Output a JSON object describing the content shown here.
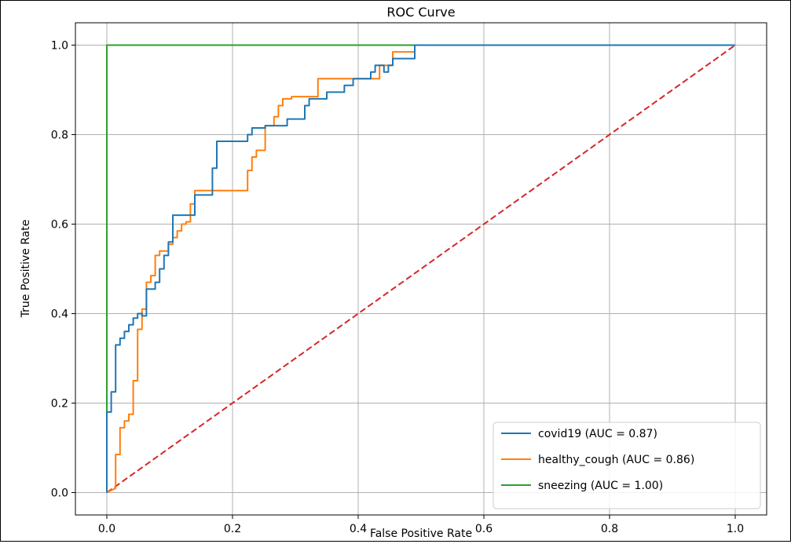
{
  "chart_data": {
    "type": "line",
    "title": "ROC Curve",
    "xlabel": "False Positive Rate",
    "ylabel": "True Positive Rate",
    "xlim": [
      -0.05,
      1.05
    ],
    "ylim": [
      -0.05,
      1.05
    ],
    "x_ticks": [
      0.0,
      0.2,
      0.4,
      0.6,
      0.8,
      1.0
    ],
    "x_tick_labels": [
      "0.0",
      "0.2",
      "0.4",
      "0.6",
      "0.8",
      "1.0"
    ],
    "y_ticks": [
      0.0,
      0.2,
      0.4,
      0.6,
      0.8,
      1.0
    ],
    "y_tick_labels": [
      "0.0",
      "0.2",
      "0.4",
      "0.6",
      "0.8",
      "1.0"
    ],
    "grid": true,
    "legend_position": "lower right",
    "series": [
      {
        "name": "covid19 (AUC = 0.87)",
        "color": "#1f77b4",
        "style": "solid",
        "x": [
          0.0,
          0.0,
          0.007,
          0.007,
          0.014,
          0.014,
          0.021,
          0.021,
          0.028,
          0.028,
          0.035,
          0.035,
          0.042,
          0.042,
          0.049,
          0.049,
          0.056,
          0.056,
          0.063,
          0.063,
          0.077,
          0.077,
          0.084,
          0.084,
          0.091,
          0.091,
          0.098,
          0.098,
          0.105,
          0.105,
          0.14,
          0.14,
          0.168,
          0.168,
          0.175,
          0.175,
          0.224,
          0.224,
          0.231,
          0.231,
          0.252,
          0.252,
          0.287,
          0.287,
          0.315,
          0.315,
          0.322,
          0.322,
          0.35,
          0.35,
          0.378,
          0.378,
          0.392,
          0.392,
          0.42,
          0.42,
          0.427,
          0.427,
          0.441,
          0.441,
          0.448,
          0.448,
          0.455,
          0.455,
          0.469,
          0.469,
          0.49,
          0.49,
          1.0
        ],
        "y": [
          0.0,
          0.18,
          0.18,
          0.225,
          0.225,
          0.33,
          0.33,
          0.345,
          0.345,
          0.36,
          0.36,
          0.375,
          0.375,
          0.39,
          0.39,
          0.4,
          0.4,
          0.395,
          0.395,
          0.455,
          0.455,
          0.47,
          0.47,
          0.5,
          0.5,
          0.53,
          0.53,
          0.56,
          0.56,
          0.62,
          0.62,
          0.665,
          0.665,
          0.725,
          0.725,
          0.785,
          0.785,
          0.8,
          0.8,
          0.815,
          0.815,
          0.82,
          0.82,
          0.835,
          0.835,
          0.865,
          0.865,
          0.88,
          0.88,
          0.895,
          0.895,
          0.91,
          0.91,
          0.925,
          0.925,
          0.94,
          0.94,
          0.955,
          0.955,
          0.94,
          0.94,
          0.955,
          0.955,
          0.97,
          0.97,
          0.97,
          0.97,
          1.0,
          1.0
        ]
      },
      {
        "name": "healthy_cough (AUC = 0.86)",
        "color": "#ff7f0e",
        "style": "solid",
        "x": [
          0.0,
          0.014,
          0.014,
          0.021,
          0.021,
          0.028,
          0.028,
          0.035,
          0.035,
          0.042,
          0.042,
          0.049,
          0.049,
          0.056,
          0.056,
          0.063,
          0.063,
          0.07,
          0.07,
          0.077,
          0.077,
          0.084,
          0.084,
          0.098,
          0.098,
          0.105,
          0.105,
          0.112,
          0.112,
          0.119,
          0.119,
          0.126,
          0.126,
          0.133,
          0.133,
          0.14,
          0.14,
          0.224,
          0.224,
          0.231,
          0.231,
          0.238,
          0.238,
          0.252,
          0.252,
          0.266,
          0.266,
          0.273,
          0.273,
          0.28,
          0.28,
          0.294,
          0.294,
          0.336,
          0.336,
          0.434,
          0.434,
          0.455,
          0.455,
          0.49,
          0.49,
          1.0
        ],
        "y": [
          0.0,
          0.01,
          0.085,
          0.085,
          0.145,
          0.145,
          0.16,
          0.16,
          0.175,
          0.175,
          0.25,
          0.25,
          0.365,
          0.365,
          0.41,
          0.41,
          0.47,
          0.47,
          0.485,
          0.485,
          0.53,
          0.53,
          0.54,
          0.54,
          0.555,
          0.555,
          0.57,
          0.57,
          0.585,
          0.585,
          0.6,
          0.6,
          0.605,
          0.605,
          0.645,
          0.645,
          0.675,
          0.675,
          0.72,
          0.72,
          0.75,
          0.75,
          0.765,
          0.765,
          0.82,
          0.82,
          0.84,
          0.84,
          0.865,
          0.865,
          0.88,
          0.88,
          0.885,
          0.885,
          0.925,
          0.925,
          0.955,
          0.955,
          0.985,
          0.985,
          1.0,
          1.0
        ]
      },
      {
        "name": "sneezing (AUC = 1.00)",
        "color": "#2ca02c",
        "style": "solid",
        "x": [
          0.0,
          0.0,
          1.0
        ],
        "y": [
          0.0,
          1.0,
          1.0
        ]
      },
      {
        "name": "",
        "color": "#d62728",
        "style": "dashed",
        "x": [
          0.0,
          1.0
        ],
        "y": [
          0.0,
          1.0
        ]
      }
    ]
  }
}
